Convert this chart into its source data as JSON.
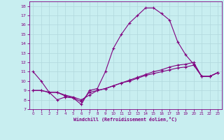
{
  "xlabel": "Windchill (Refroidissement éolien,°C)",
  "bg_color": "#c8eef0",
  "line_color": "#800080",
  "grid_color": "#b0d8dc",
  "xlim": [
    -0.5,
    23.5
  ],
  "ylim": [
    7,
    18.5
  ],
  "xticks": [
    0,
    1,
    2,
    3,
    4,
    5,
    6,
    7,
    8,
    9,
    10,
    11,
    12,
    13,
    14,
    15,
    16,
    17,
    18,
    19,
    20,
    21,
    22,
    23
  ],
  "yticks": [
    7,
    8,
    9,
    10,
    11,
    12,
    13,
    14,
    15,
    16,
    17,
    18
  ],
  "line1_x": [
    0,
    1,
    2,
    3,
    4,
    5,
    6,
    7,
    8,
    9,
    10,
    11,
    12,
    13,
    14,
    15,
    16,
    17,
    18,
    19,
    20,
    21,
    22,
    23
  ],
  "line1_y": [
    11.0,
    10.0,
    8.8,
    8.0,
    8.3,
    8.2,
    7.5,
    9.0,
    9.2,
    11.0,
    13.5,
    15.0,
    16.2,
    17.0,
    17.8,
    17.8,
    17.2,
    16.5,
    14.2,
    12.8,
    11.8,
    10.5,
    10.5,
    10.9
  ],
  "line2_x": [
    0,
    1,
    2,
    3,
    4,
    5,
    6,
    7,
    8,
    9,
    10,
    11,
    12,
    13,
    14,
    15,
    16,
    17,
    18,
    19,
    20,
    21,
    22,
    23
  ],
  "line2_y": [
    9.0,
    9.0,
    8.8,
    8.8,
    8.5,
    8.3,
    8.0,
    8.5,
    9.0,
    9.2,
    9.5,
    9.8,
    10.1,
    10.4,
    10.7,
    11.0,
    11.2,
    11.5,
    11.7,
    11.8,
    12.0,
    10.5,
    10.5,
    10.9
  ],
  "line3_x": [
    0,
    1,
    2,
    3,
    4,
    5,
    6,
    7,
    8,
    9,
    10,
    11,
    12,
    13,
    14,
    15,
    16,
    17,
    18,
    19,
    20,
    21,
    22,
    23
  ],
  "line3_y": [
    9.0,
    9.0,
    8.8,
    8.8,
    8.4,
    8.2,
    7.8,
    8.8,
    9.0,
    9.2,
    9.5,
    9.8,
    10.0,
    10.3,
    10.6,
    10.8,
    11.0,
    11.2,
    11.4,
    11.5,
    11.7,
    10.5,
    10.5,
    10.9
  ]
}
